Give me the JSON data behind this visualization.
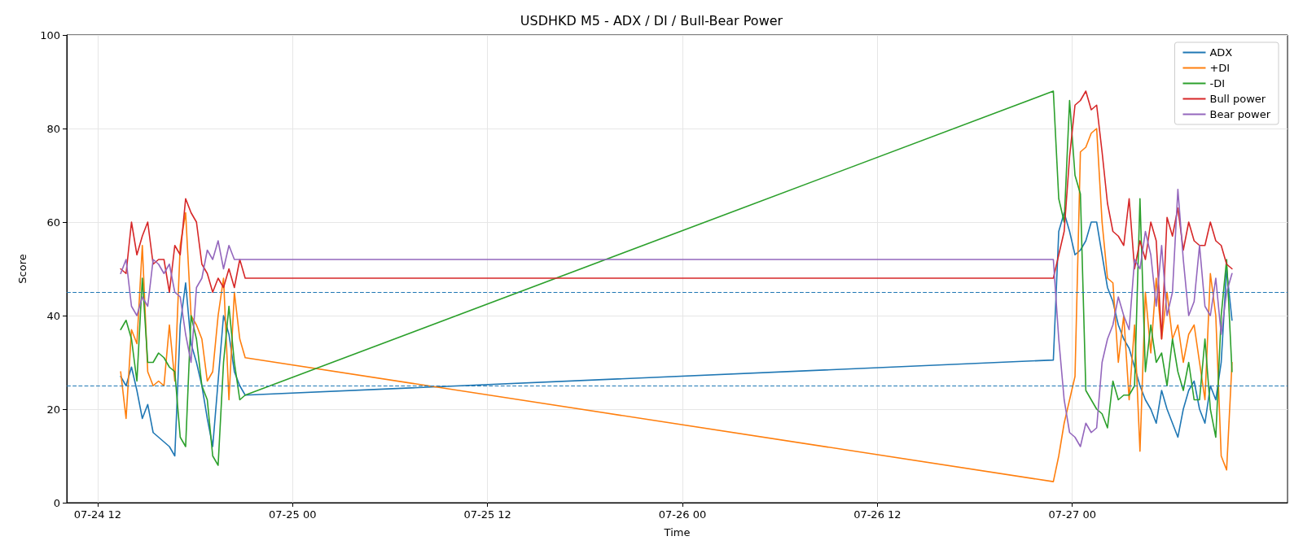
{
  "chart_data": {
    "type": "line",
    "title": "USDHKD M5 - ADX / DI / Bull-Bear Power",
    "xlabel": "Time",
    "ylabel": "Score",
    "x": [
      "--07-24T13:25",
      "--07-24T13:45",
      "--07-24T14:05",
      "--07-24T14:25",
      "--07-24T14:45",
      "--07-24T15:05",
      "--07-24T15:25",
      "--07-24T15:45",
      "--07-24T16:05",
      "--07-24T16:25",
      "--07-24T16:45",
      "--07-24T17:05",
      "--07-24T17:25",
      "--07-24T17:45",
      "--07-24T18:05",
      "--07-24T18:25",
      "--07-24T18:45",
      "--07-24T19:05",
      "--07-24T19:25",
      "--07-24T19:45",
      "--07-24T20:05",
      "--07-24T20:25",
      "--07-24T20:45",
      "--07-24T21:05",
      "--07-26T22:50",
      "--07-26T23:10",
      "--07-26T23:30",
      "--07-26T23:50",
      "--07-27T00:10",
      "--07-27T00:30",
      "--07-27T00:50",
      "--07-27T01:10",
      "--07-27T01:30",
      "--07-27T01:50",
      "--07-27T02:10",
      "--07-27T02:30",
      "--07-27T02:50",
      "--07-27T03:10",
      "--07-27T03:30",
      "--07-27T03:50",
      "--07-27T04:10",
      "--07-27T04:30",
      "--07-27T04:50",
      "--07-27T05:10",
      "--07-27T05:30",
      "--07-27T05:50",
      "--07-27T06:10",
      "--07-27T06:30",
      "--07-27T06:50",
      "--07-27T07:10",
      "--07-27T07:30",
      "--07-27T07:50",
      "--07-27T08:10",
      "--07-27T08:30",
      "--07-27T08:50",
      "--07-27T09:10",
      "--07-27T09:30",
      "--07-27T09:50"
    ],
    "series": [
      {
        "name": "ADX",
        "color": "#1f77b4",
        "values": [
          27,
          25,
          29,
          24,
          18,
          21,
          15,
          14,
          13,
          12,
          10,
          38,
          47,
          34,
          30,
          25,
          18,
          12,
          26,
          40,
          36,
          28,
          25,
          23,
          30.5,
          58,
          62,
          58,
          53,
          54,
          56,
          60,
          60,
          53,
          46,
          43,
          38,
          35,
          33,
          29,
          25,
          22,
          20,
          17,
          24,
          20,
          17,
          14,
          20,
          24,
          26,
          20,
          17,
          25,
          22,
          30,
          50,
          39
        ]
      },
      {
        "name": "+DI",
        "color": "#ff7f0e",
        "values": [
          28,
          18,
          37,
          34,
          55,
          28,
          25,
          26,
          25,
          38,
          26,
          55,
          62,
          40,
          38,
          35,
          26,
          28,
          40,
          48,
          22,
          45,
          35,
          31,
          4.5,
          10,
          17,
          22,
          27,
          75,
          76,
          79,
          80,
          60,
          48,
          47,
          30,
          40,
          22,
          38,
          11,
          45,
          32,
          48,
          35,
          45,
          35,
          38,
          30,
          36,
          38,
          30,
          22,
          49,
          40,
          10,
          7,
          30
        ]
      },
      {
        "name": "-DI",
        "color": "#2ca02c",
        "values": [
          37,
          39,
          35,
          26,
          48,
          30,
          30,
          32,
          31,
          29,
          28,
          14,
          12,
          40,
          35,
          25,
          22,
          10,
          8,
          30,
          42,
          30,
          22,
          23,
          88,
          65,
          60,
          86,
          70,
          66,
          24,
          22,
          20,
          19,
          16,
          26,
          22,
          23,
          23,
          25,
          65,
          28,
          38,
          30,
          32,
          25,
          35,
          28,
          24,
          30,
          22,
          22,
          35,
          20,
          14,
          40,
          52,
          28
        ]
      },
      {
        "name": "Bull power",
        "color": "#d62728",
        "values": [
          50,
          49,
          60,
          53,
          57,
          60,
          51,
          52,
          52,
          45,
          55,
          53,
          65,
          62,
          60,
          51,
          49,
          45,
          48,
          46,
          50,
          46,
          52,
          48,
          48,
          53,
          58,
          74,
          85,
          86,
          88,
          84,
          85,
          75,
          64,
          58,
          57,
          55,
          65,
          50,
          56,
          52,
          60,
          56,
          35,
          61,
          57,
          63,
          54,
          60,
          56,
          55,
          55,
          60,
          56,
          55,
          51,
          50
        ]
      },
      {
        "name": "Bear power",
        "color": "#9467bd",
        "values": [
          49,
          52,
          42,
          40,
          44,
          42,
          52,
          51,
          49,
          51,
          45,
          44,
          36,
          30,
          46,
          48,
          54,
          52,
          56,
          50,
          55,
          52,
          52,
          52,
          52,
          35,
          22,
          15,
          14,
          12,
          17,
          15,
          16,
          30,
          35,
          38,
          44,
          40,
          37,
          52,
          50,
          58,
          53,
          42,
          55,
          40,
          45,
          67,
          52,
          40,
          43,
          55,
          42,
          40,
          48,
          36,
          45,
          49
        ]
      }
    ],
    "xlim": [
      "--07-24T10:06",
      "--07-27T13:15"
    ],
    "xticks": [
      {
        "value": "--07-24T12:00",
        "label": "07-24 12"
      },
      {
        "value": "--07-25T00:00",
        "label": "07-25 00"
      },
      {
        "value": "--07-25T12:00",
        "label": "07-25 12"
      },
      {
        "value": "--07-26T00:00",
        "label": "07-26 00"
      },
      {
        "value": "--07-26T12:00",
        "label": "07-26 12"
      },
      {
        "value": "--07-27T00:00",
        "label": "07-27 00"
      }
    ],
    "ylim": [
      0,
      100
    ],
    "yticks": [
      0,
      20,
      40,
      60,
      80,
      100
    ],
    "ref_lines": [
      {
        "axis": "y",
        "value": 45,
        "color": "#1f77b4",
        "line_style": "dashed"
      },
      {
        "axis": "y",
        "value": 25,
        "color": "#1f77b4",
        "line_style": "dashed"
      }
    ],
    "grid": true,
    "legend": "top right",
    "line_style": "solid",
    "marker": "none"
  }
}
